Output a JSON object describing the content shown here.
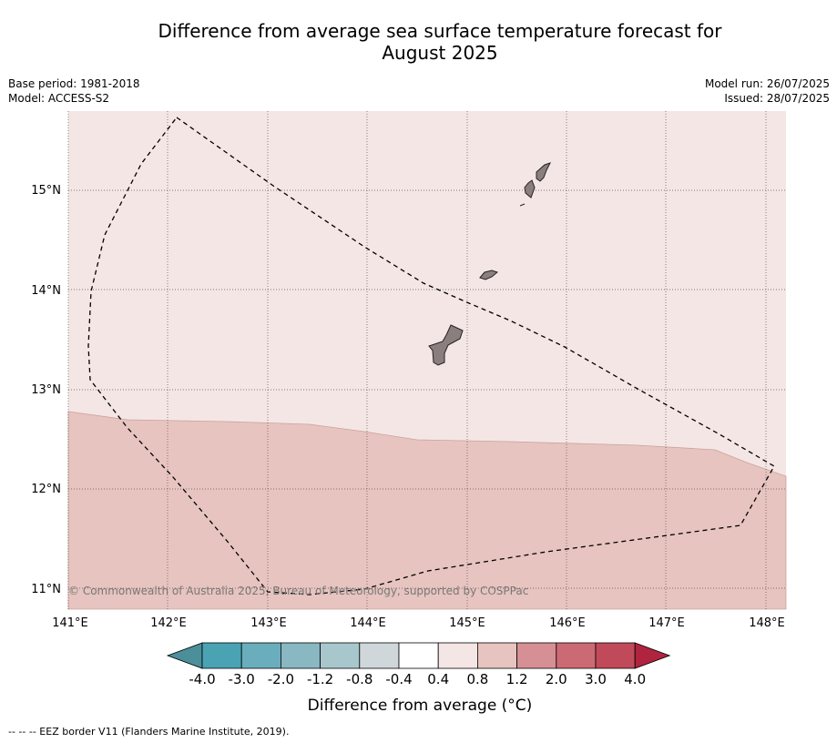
{
  "title_line1": "Difference from average sea surface temperature forecast for",
  "title_line2": "August 2025",
  "base_period": "Base period: 1981-2018",
  "model": "Model: ACCESS-S2",
  "model_run": "Model run: 26/07/2025",
  "issued": "Issued: 28/07/2025",
  "copyright": "© Commonwealth of Australia 2025, Bureau of Meteorology, supported by COSPPac",
  "footer": "--  --  -- EEZ border V11 (Flanders Marine Institute, 2019).",
  "colorbar": {
    "title": "Difference from average (°C)",
    "tick_labels": [
      "-4.0",
      "-3.0",
      "-2.0",
      "-1.2",
      "-0.8",
      "-0.4",
      "0.4",
      "0.8",
      "1.2",
      "2.0",
      "3.0",
      "4.0"
    ],
    "colors": [
      "#4a8f9a",
      "#4aa3b3",
      "#6aaebe",
      "#89b7c2",
      "#a8c7cc",
      "#d0d7da",
      "#ffffff",
      "#f4e6e4",
      "#e7c4bf",
      "#d78f96",
      "#cc6a74",
      "#c14a5a",
      "#b0243f"
    ]
  },
  "map": {
    "lon_labels": [
      "141°E",
      "142°E",
      "143°E",
      "144°E",
      "145°E",
      "146°E",
      "147°E",
      "148°E"
    ],
    "lat_labels": [
      "15°N",
      "14°N",
      "13°N",
      "12°N",
      "11°N"
    ],
    "region_colors": {
      "north": "#f4e6e4",
      "south": "#e7c4bf",
      "land": "#8b7f7d"
    }
  }
}
